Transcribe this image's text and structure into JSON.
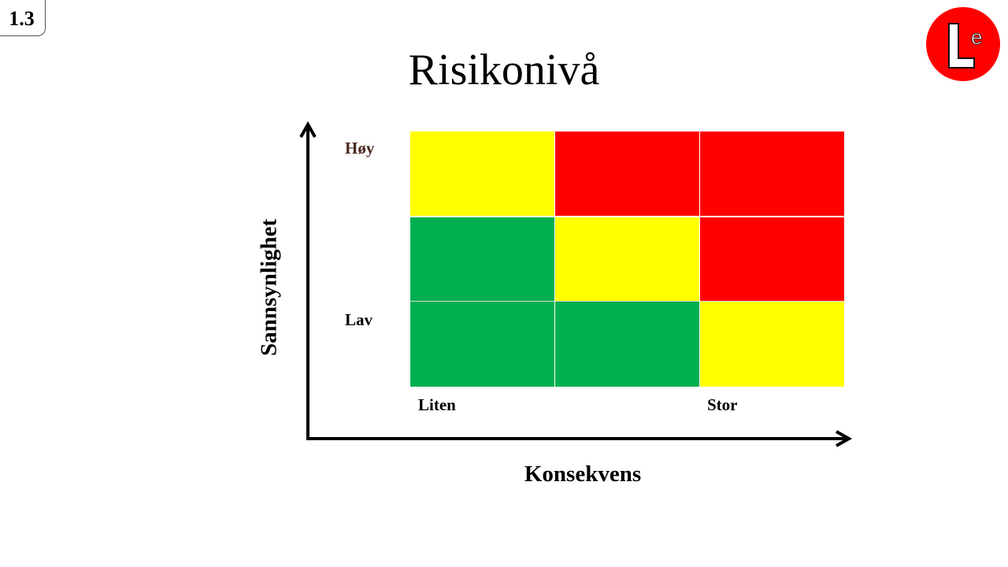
{
  "slide_number": "1.3",
  "logo": {
    "icon": "le-logo-icon",
    "letter_main": "L",
    "letter_sup": "e",
    "color": "#ff0000"
  },
  "title": "Risikonivå",
  "matrix": {
    "x_axis_title": "Konsekvens",
    "y_axis_title": "Sannsynlighet",
    "row_labels": {
      "high": "Høy",
      "low": "Lav"
    },
    "col_labels": {
      "left": "Liten",
      "right": "Stor"
    },
    "colors": {
      "green": "#00b050",
      "yellow": "#ffff00",
      "red": "#ff0000",
      "high_label": "#4a2a20"
    },
    "rows": [
      [
        "yellow",
        "red",
        "red"
      ],
      [
        "green",
        "yellow",
        "red"
      ],
      [
        "green",
        "green",
        "yellow"
      ]
    ]
  }
}
